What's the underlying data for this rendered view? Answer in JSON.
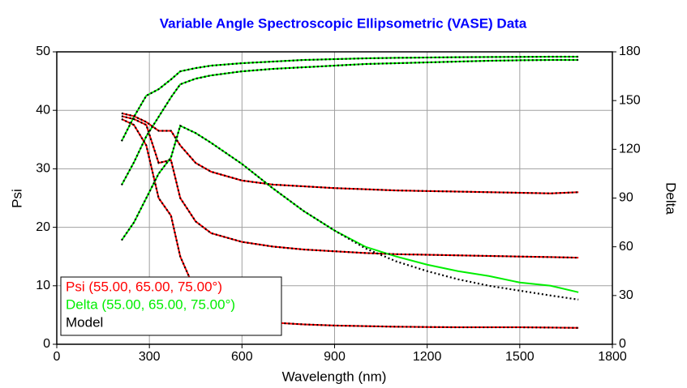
{
  "chart_data": {
    "type": "line",
    "title": "Variable Angle Spectroscopic Ellipsometric (VASE) Data",
    "x_label": "Wavelength (nm)",
    "y_label": "Psi",
    "y2_label": "Delta",
    "xlim": [
      0,
      1800
    ],
    "xticks": [
      0,
      300,
      600,
      900,
      1200,
      1500,
      1800
    ],
    "ylim": [
      0,
      50
    ],
    "yticks": [
      0,
      10,
      20,
      30,
      40,
      50
    ],
    "y2lim": [
      0,
      180
    ],
    "y2ticks": [
      0,
      30,
      60,
      90,
      120,
      150,
      180
    ],
    "grid": true,
    "legend": "lower left",
    "x": [
      210,
      250,
      290,
      330,
      370,
      400,
      450,
      500,
      600,
      700,
      800,
      900,
      1000,
      1100,
      1200,
      1300,
      1400,
      1500,
      1600,
      1690
    ],
    "series": [
      {
        "name": "Psi (55.00, 65.00, 75.00°)",
        "color": "#ff0000",
        "axis": "y",
        "curves": [
          [
            39.5,
            39,
            38,
            36.5,
            36.5,
            34,
            31,
            29.5,
            28,
            27.3,
            27,
            26.7,
            26.5,
            26.3,
            26.2,
            26.1,
            26,
            25.9,
            25.8,
            26
          ],
          [
            39,
            38.5,
            37.5,
            31,
            31.5,
            25,
            21,
            19,
            17.5,
            16.7,
            16.2,
            15.9,
            15.6,
            15.4,
            15.3,
            15.2,
            15.1,
            15,
            14.9,
            14.8
          ],
          [
            38.5,
            37.5,
            34,
            25,
            22,
            15,
            9,
            6,
            4.2,
            3.7,
            3.4,
            3.2,
            3.1,
            3,
            2.95,
            2.9,
            2.9,
            2.9,
            2.85,
            2.8
          ]
        ]
      },
      {
        "name": "Delta (55.00, 65.00, 75.00°)",
        "color": "#00ee00",
        "axis": "y2",
        "curves": [
          [
            125,
            140,
            153,
            157,
            163,
            168,
            170,
            171.5,
            173,
            174,
            175,
            175.5,
            176,
            176.3,
            176.5,
            176.7,
            176.8,
            176.9,
            177,
            177
          ],
          [
            98,
            112,
            128,
            140,
            152,
            160,
            163.5,
            165.5,
            168,
            169.5,
            170.5,
            171.5,
            172.5,
            173,
            173.5,
            174,
            174.5,
            174.8,
            175,
            175
          ],
          [
            64,
            75,
            90,
            105,
            115,
            134.5,
            130,
            124,
            111,
            96,
            82,
            70,
            60,
            54,
            49,
            45,
            42,
            38,
            36,
            32
          ]
        ]
      },
      {
        "name": "Model",
        "color": "#000000",
        "dashed": true,
        "curves": [
          {
            "axis": "y",
            "values": [
              39.5,
              39,
              38,
              36.5,
              36.5,
              34,
              31,
              29.5,
              28,
              27.3,
              27,
              26.7,
              26.5,
              26.3,
              26.2,
              26.1,
              26,
              25.9,
              25.8,
              26
            ]
          },
          {
            "axis": "y",
            "values": [
              39,
              38.5,
              37.5,
              31,
              31.5,
              25,
              21,
              19,
              17.5,
              16.7,
              16.2,
              15.9,
              15.6,
              15.4,
              15.3,
              15.2,
              15.1,
              15,
              14.9,
              14.8
            ]
          },
          {
            "axis": "y",
            "values": [
              38.5,
              37.5,
              34,
              25,
              22,
              15,
              9,
              6,
              4.2,
              3.7,
              3.4,
              3.2,
              3.1,
              3,
              2.95,
              2.9,
              2.9,
              2.9,
              2.85,
              2.8
            ]
          },
          {
            "axis": "y2",
            "values": [
              125,
              140,
              153,
              157,
              163,
              168,
              170,
              171.5,
              173,
              174,
              175,
              175.5,
              176,
              176.3,
              176.5,
              176.7,
              176.8,
              176.9,
              177,
              177
            ]
          },
          {
            "axis": "y2",
            "values": [
              98,
              112,
              128,
              140,
              152,
              160,
              163.5,
              165.5,
              168,
              169.5,
              170.5,
              171.5,
              172.5,
              173,
              173.5,
              174,
              174.5,
              174.8,
              175,
              175
            ]
          },
          {
            "axis": "y2",
            "values": [
              64,
              75,
              90,
              105,
              115,
              134.5,
              130,
              124,
              111,
              96,
              82,
              70,
              59,
              51,
              45,
              40,
              36,
              33,
              30,
              27.5
            ]
          }
        ]
      }
    ]
  }
}
